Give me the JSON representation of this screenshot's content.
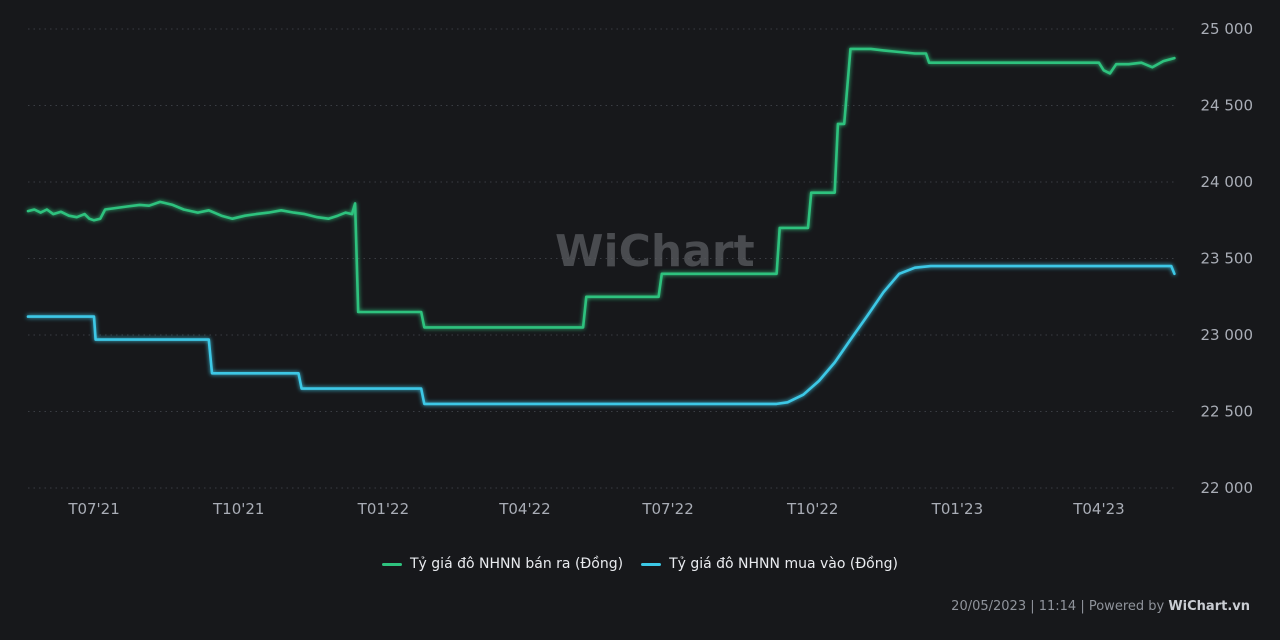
{
  "chart_data": {
    "type": "line",
    "y_axis_side": "right",
    "ylim": [
      22000,
      25000
    ],
    "y_ticks": [
      {
        "value": 25000,
        "label": "25 000"
      },
      {
        "value": 24500,
        "label": "24 500"
      },
      {
        "value": 24000,
        "label": "24 000"
      },
      {
        "value": 23500,
        "label": "23 500"
      },
      {
        "value": 23000,
        "label": "23 000"
      },
      {
        "value": 22500,
        "label": "22 500"
      },
      {
        "value": 22000,
        "label": "22 000"
      }
    ],
    "xlim": [
      "2021-05-20",
      "2023-05-20"
    ],
    "x_ticks": [
      {
        "date": "2021-07-01",
        "label": "T07'21"
      },
      {
        "date": "2021-10-01",
        "label": "T10'21"
      },
      {
        "date": "2022-01-01",
        "label": "T01'22"
      },
      {
        "date": "2022-04-01",
        "label": "T04'22"
      },
      {
        "date": "2022-07-01",
        "label": "T07'22"
      },
      {
        "date": "2022-10-01",
        "label": "T10'22"
      },
      {
        "date": "2023-01-01",
        "label": "T01'23"
      },
      {
        "date": "2023-04-01",
        "label": "T04'23"
      }
    ],
    "grid": "horizontal dotted",
    "legend_position": "bottom-center",
    "series": [
      {
        "name": "Tỷ giá đô NHNN bán ra (Đồng)",
        "color": "#2ec27e",
        "points": [
          [
            "2021-05-20",
            23810
          ],
          [
            "2021-05-24",
            23820
          ],
          [
            "2021-05-28",
            23800
          ],
          [
            "2021-06-01",
            23820
          ],
          [
            "2021-06-05",
            23790
          ],
          [
            "2021-06-10",
            23805
          ],
          [
            "2021-06-15",
            23780
          ],
          [
            "2021-06-20",
            23770
          ],
          [
            "2021-06-25",
            23790
          ],
          [
            "2021-06-28",
            23760
          ],
          [
            "2021-07-01",
            23750
          ],
          [
            "2021-07-05",
            23760
          ],
          [
            "2021-07-08",
            23820
          ],
          [
            "2021-07-15",
            23830
          ],
          [
            "2021-07-22",
            23840
          ],
          [
            "2021-07-30",
            23850
          ],
          [
            "2021-08-05",
            23845
          ],
          [
            "2021-08-12",
            23870
          ],
          [
            "2021-08-20",
            23850
          ],
          [
            "2021-08-27",
            23820
          ],
          [
            "2021-09-05",
            23800
          ],
          [
            "2021-09-12",
            23815
          ],
          [
            "2021-09-20",
            23780
          ],
          [
            "2021-09-27",
            23760
          ],
          [
            "2021-10-05",
            23780
          ],
          [
            "2021-10-12",
            23790
          ],
          [
            "2021-10-20",
            23800
          ],
          [
            "2021-10-28",
            23815
          ],
          [
            "2021-11-05",
            23800
          ],
          [
            "2021-11-12",
            23790
          ],
          [
            "2021-11-20",
            23770
          ],
          [
            "2021-11-27",
            23760
          ],
          [
            "2021-12-03",
            23780
          ],
          [
            "2021-12-08",
            23800
          ],
          [
            "2021-12-12",
            23790
          ],
          [
            "2021-12-14",
            23860
          ],
          [
            "2021-12-16",
            23150
          ],
          [
            "2022-01-25",
            23150
          ],
          [
            "2022-01-27",
            23050
          ],
          [
            "2022-05-08",
            23050
          ],
          [
            "2022-05-10",
            23250
          ],
          [
            "2022-06-25",
            23250
          ],
          [
            "2022-06-27",
            23400
          ],
          [
            "2022-09-08",
            23400
          ],
          [
            "2022-09-10",
            23700
          ],
          [
            "2022-09-28",
            23700
          ],
          [
            "2022-09-30",
            23930
          ],
          [
            "2022-10-15",
            23930
          ],
          [
            "2022-10-17",
            24380
          ],
          [
            "2022-10-21",
            24380
          ],
          [
            "2022-10-25",
            24870
          ],
          [
            "2022-11-07",
            24870
          ],
          [
            "2022-11-15",
            24860
          ],
          [
            "2022-11-25",
            24850
          ],
          [
            "2022-12-05",
            24840
          ],
          [
            "2022-12-12",
            24840
          ],
          [
            "2022-12-14",
            24780
          ],
          [
            "2023-02-10",
            24780
          ],
          [
            "2023-03-01",
            24780
          ],
          [
            "2023-04-01",
            24780
          ],
          [
            "2023-04-04",
            24730
          ],
          [
            "2023-04-08",
            24710
          ],
          [
            "2023-04-12",
            24770
          ],
          [
            "2023-04-20",
            24770
          ],
          [
            "2023-04-28",
            24780
          ],
          [
            "2023-05-05",
            24750
          ],
          [
            "2023-05-12",
            24790
          ],
          [
            "2023-05-19",
            24810
          ]
        ]
      },
      {
        "name": "Tỷ giá đô NHNN mua vào (Đồng)",
        "color": "#3cc8e6",
        "points": [
          [
            "2021-05-20",
            23120
          ],
          [
            "2021-07-01",
            23120
          ],
          [
            "2021-07-02",
            22970
          ],
          [
            "2021-09-12",
            22970
          ],
          [
            "2021-09-14",
            22750
          ],
          [
            "2021-11-08",
            22750
          ],
          [
            "2021-11-10",
            22650
          ],
          [
            "2022-01-25",
            22650
          ],
          [
            "2022-01-27",
            22550
          ],
          [
            "2022-09-08",
            22550
          ],
          [
            "2022-09-15",
            22560
          ],
          [
            "2022-09-25",
            22610
          ],
          [
            "2022-10-05",
            22700
          ],
          [
            "2022-10-15",
            22820
          ],
          [
            "2022-10-25",
            22970
          ],
          [
            "2022-11-05",
            23130
          ],
          [
            "2022-11-15",
            23280
          ],
          [
            "2022-11-25",
            23400
          ],
          [
            "2022-12-05",
            23440
          ],
          [
            "2022-12-15",
            23450
          ],
          [
            "2023-05-17",
            23450
          ],
          [
            "2023-05-19",
            23400
          ]
        ]
      }
    ],
    "watermark": "WiChart"
  },
  "legend": {
    "items": [
      {
        "label": "Tỷ giá đô NHNN bán ra (Đồng)",
        "color": "#2ec27e"
      },
      {
        "label": "Tỷ giá đô NHNN mua vào (Đồng)",
        "color": "#3cc8e6"
      }
    ]
  },
  "footer": {
    "prefix": "20/05/2023 | 11:14 | Powered by ",
    "brand": "WiChart.vn"
  }
}
